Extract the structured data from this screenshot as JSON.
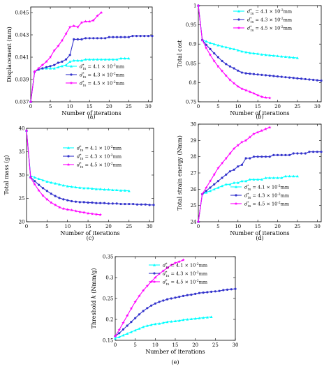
{
  "colors": {
    "series": [
      "#00ffff",
      "#3333cc",
      "#ff00ff"
    ],
    "axis": "#000000"
  },
  "chart_data": [
    {
      "type": "line",
      "caption": "(a)",
      "xlabel": "Number of iterations",
      "ylabel": "Displacement (mm)",
      "xlim": [
        0,
        31
      ],
      "ylim": [
        0.037,
        0.0455
      ],
      "xticks": [
        "0",
        "5",
        "10",
        "15",
        "20",
        "25",
        "30"
      ],
      "yticks": [
        "0.037",
        "0.039",
        "0.041",
        "0.043",
        "0.045"
      ],
      "legend_position": "bottom-right",
      "series": [
        {
          "name": "d*_{tn} = 4.1 × 10^{-2}mm",
          "x": [
            0,
            1,
            2,
            3,
            4,
            5,
            6,
            7,
            8,
            9,
            10,
            11,
            12,
            13,
            14,
            15,
            16,
            17,
            18,
            19,
            20,
            21,
            22,
            23,
            24,
            25
          ],
          "values": [
            0.037,
            0.0397,
            0.0399,
            0.04,
            0.04,
            0.04,
            0.04,
            0.0401,
            0.0402,
            0.0403,
            0.0406,
            0.0407,
            0.0407,
            0.0407,
            0.0408,
            0.0408,
            0.0408,
            0.0408,
            0.0408,
            0.0408,
            0.0408,
            0.0408,
            0.0408,
            0.0409,
            0.0409,
            0.0409
          ]
        },
        {
          "name": "d*_{tn} = 4.3 × 10^{-2}mm",
          "x": [
            0,
            1,
            2,
            3,
            4,
            5,
            6,
            7,
            8,
            9,
            10,
            11,
            12,
            13,
            14,
            15,
            16,
            17,
            18,
            19,
            20,
            21,
            22,
            23,
            24,
            25,
            26,
            27,
            28,
            29,
            30,
            31
          ],
          "values": [
            0.037,
            0.0397,
            0.0399,
            0.04,
            0.0401,
            0.0402,
            0.0403,
            0.0405,
            0.0406,
            0.0408,
            0.0412,
            0.0426,
            0.0426,
            0.0426,
            0.0427,
            0.0427,
            0.0427,
            0.0427,
            0.0427,
            0.0427,
            0.0428,
            0.0428,
            0.0428,
            0.0428,
            0.0428,
            0.0428,
            0.0429,
            0.0429,
            0.0429,
            0.0429,
            0.0429,
            0.0429
          ]
        },
        {
          "name": "d*_{tn} = 4.5 × 10^{-2}mm",
          "x": [
            0,
            1,
            2,
            3,
            4,
            5,
            6,
            7,
            8,
            9,
            10,
            11,
            12,
            13,
            14,
            15,
            16,
            17,
            18
          ],
          "values": [
            0.037,
            0.0397,
            0.04,
            0.0403,
            0.0406,
            0.041,
            0.0416,
            0.042,
            0.0425,
            0.0431,
            0.0437,
            0.0438,
            0.0437,
            0.0441,
            0.0442,
            0.0442,
            0.0443,
            0.0447,
            0.045
          ]
        }
      ]
    },
    {
      "type": "line",
      "caption": "(b)",
      "xlabel": "Number of iterations",
      "ylabel": "Total cost",
      "xlim": [
        0,
        31
      ],
      "ylim": [
        0.75,
        1.0
      ],
      "xticks": [
        "0",
        "5",
        "10",
        "15",
        "20",
        "25",
        "30"
      ],
      "yticks": [
        "0.75",
        "0.8",
        "0.85",
        "0.9",
        "0.95",
        "1"
      ],
      "legend_position": "top-right",
      "series": [
        {
          "name": "d*_{tn} = 4.1 × 10^{-2}mm",
          "x": [
            0,
            1,
            2,
            3,
            4,
            5,
            6,
            7,
            8,
            9,
            10,
            11,
            12,
            13,
            14,
            15,
            16,
            17,
            18,
            19,
            20,
            21,
            22,
            23,
            24,
            25
          ],
          "values": [
            1.0,
            0.911,
            0.907,
            0.903,
            0.9,
            0.897,
            0.894,
            0.892,
            0.889,
            0.887,
            0.884,
            0.881,
            0.879,
            0.877,
            0.876,
            0.875,
            0.873,
            0.872,
            0.871,
            0.87,
            0.869,
            0.868,
            0.867,
            0.866,
            0.865,
            0.864
          ]
        },
        {
          "name": "d*_{tn} = 4.3 × 10^{-2}mm",
          "x": [
            0,
            1,
            2,
            3,
            4,
            5,
            6,
            7,
            8,
            9,
            10,
            11,
            12,
            13,
            14,
            15,
            16,
            17,
            18,
            19,
            20,
            21,
            22,
            23,
            24,
            25,
            26,
            27,
            28,
            29,
            30,
            31
          ],
          "values": [
            1.0,
            0.911,
            0.898,
            0.887,
            0.876,
            0.866,
            0.856,
            0.848,
            0.842,
            0.837,
            0.831,
            0.826,
            0.824,
            0.823,
            0.822,
            0.821,
            0.82,
            0.819,
            0.818,
            0.817,
            0.816,
            0.815,
            0.814,
            0.813,
            0.812,
            0.811,
            0.81,
            0.809,
            0.808,
            0.807,
            0.806,
            0.805
          ]
        },
        {
          "name": "d*_{tn} = 4.5 × 10^{-2}mm",
          "x": [
            0,
            1,
            2,
            3,
            4,
            5,
            6,
            7,
            8,
            9,
            10,
            11,
            12,
            13,
            14,
            15,
            16,
            17,
            18
          ],
          "values": [
            1.0,
            0.91,
            0.89,
            0.872,
            0.856,
            0.842,
            0.83,
            0.818,
            0.807,
            0.798,
            0.79,
            0.784,
            0.78,
            0.776,
            0.772,
            0.767,
            0.763,
            0.761,
            0.76
          ]
        }
      ]
    },
    {
      "type": "line",
      "caption": "(c)",
      "xlabel": "Number of iterations",
      "ylabel": "Total mass (g)",
      "xlim": [
        0,
        31
      ],
      "ylim": [
        20,
        40
      ],
      "xticks": [
        "0",
        "5",
        "10",
        "15",
        "20",
        "25",
        "30"
      ],
      "yticks": [
        "20",
        "25",
        "30",
        "35",
        "40"
      ],
      "legend_position": "top-right",
      "series": [
        {
          "name": "d*_{tn} = 4.1 × 10^{-2}mm",
          "x": [
            0,
            1,
            2,
            3,
            4,
            5,
            6,
            7,
            8,
            9,
            10,
            11,
            12,
            13,
            14,
            15,
            16,
            17,
            18,
            19,
            20,
            21,
            22,
            23,
            24,
            25
          ],
          "values": [
            39.5,
            29.8,
            29.5,
            29.2,
            28.9,
            28.6,
            28.4,
            28.2,
            28.0,
            27.8,
            27.6,
            27.5,
            27.4,
            27.3,
            27.2,
            27.2,
            27.1,
            27.0,
            27.0,
            26.9,
            26.9,
            26.8,
            26.8,
            26.7,
            26.7,
            26.6
          ]
        },
        {
          "name": "d*_{tn} = 4.3 × 10^{-2}mm",
          "x": [
            0,
            1,
            2,
            3,
            4,
            5,
            6,
            7,
            8,
            9,
            10,
            11,
            12,
            13,
            14,
            15,
            16,
            17,
            18,
            19,
            20,
            21,
            22,
            23,
            24,
            25,
            26,
            27,
            28,
            29,
            30,
            31
          ],
          "values": [
            39.5,
            29.5,
            28.7,
            27.9,
            27.2,
            26.6,
            26.0,
            25.5,
            25.1,
            24.8,
            24.6,
            24.4,
            24.3,
            24.2,
            24.2,
            24.1,
            24.1,
            24.0,
            24.0,
            24.0,
            23.9,
            23.9,
            23.9,
            23.8,
            23.8,
            23.8,
            23.8,
            23.7,
            23.7,
            23.7,
            23.6,
            23.6
          ]
        },
        {
          "name": "d*_{tn} = 4.5 × 10^{-2}mm",
          "x": [
            0,
            1,
            2,
            3,
            4,
            5,
            6,
            7,
            8,
            9,
            10,
            11,
            12,
            13,
            14,
            15,
            16,
            17,
            18
          ],
          "values": [
            39.5,
            29.4,
            28.0,
            26.7,
            25.6,
            24.8,
            24.1,
            23.6,
            23.1,
            22.8,
            22.6,
            22.5,
            22.3,
            22.1,
            22.0,
            21.8,
            21.7,
            21.6,
            21.5
          ]
        }
      ]
    },
    {
      "type": "line",
      "caption": "(d)",
      "xlabel": "Number of iterations",
      "ylabel": "Total strain energy (Nmm)",
      "xlim": [
        0,
        31
      ],
      "ylim": [
        24,
        30
      ],
      "xticks": [
        "0",
        "5",
        "10",
        "15",
        "20",
        "25",
        "30"
      ],
      "yticks": [
        "24",
        "25",
        "26",
        "27",
        "28",
        "29",
        "30"
      ],
      "legend_position": "bottom-right",
      "series": [
        {
          "name": "d*_{tn} = 4.1 × 10^{-2}mm",
          "x": [
            0,
            1,
            2,
            3,
            4,
            5,
            6,
            7,
            8,
            9,
            10,
            11,
            12,
            13,
            14,
            15,
            16,
            17,
            18,
            19,
            20,
            21,
            22,
            23,
            24,
            25
          ],
          "values": [
            24.0,
            25.7,
            25.8,
            25.9,
            26.0,
            26.1,
            26.2,
            26.3,
            26.3,
            26.4,
            26.4,
            26.5,
            26.5,
            26.6,
            26.6,
            26.6,
            26.6,
            26.7,
            26.7,
            26.7,
            26.7,
            26.7,
            26.8,
            26.8,
            26.8,
            26.8
          ]
        },
        {
          "name": "d*_{tn} = 4.3 × 10^{-2}mm",
          "x": [
            0,
            1,
            2,
            3,
            4,
            5,
            6,
            7,
            8,
            9,
            10,
            11,
            12,
            13,
            14,
            15,
            16,
            17,
            18,
            19,
            20,
            21,
            22,
            23,
            24,
            25,
            26,
            27,
            28,
            29,
            30,
            31
          ],
          "values": [
            24.0,
            25.7,
            25.9,
            26.1,
            26.3,
            26.5,
            26.7,
            26.9,
            27.1,
            27.2,
            27.4,
            27.5,
            27.9,
            27.9,
            28.0,
            28.0,
            28.0,
            28.0,
            28.0,
            28.1,
            28.1,
            28.1,
            28.1,
            28.1,
            28.2,
            28.2,
            28.2,
            28.2,
            28.3,
            28.3,
            28.3,
            28.3
          ]
        },
        {
          "name": "d*_{tn} = 4.5 × 10^{-2}mm",
          "x": [
            0,
            1,
            2,
            3,
            4,
            5,
            6,
            7,
            8,
            9,
            10,
            11,
            12,
            13,
            14,
            15,
            16,
            17,
            18
          ],
          "values": [
            24.0,
            25.7,
            26.1,
            26.5,
            26.9,
            27.3,
            27.6,
            27.9,
            28.2,
            28.5,
            28.7,
            28.9,
            29.0,
            29.2,
            29.4,
            29.5,
            29.6,
            29.7,
            29.8
          ]
        }
      ]
    },
    {
      "type": "line",
      "caption": "(e)",
      "xlabel": "Number of iterations",
      "ylabel": "Threshold k (Nmm/g)",
      "xlim": [
        0,
        30
      ],
      "ylim": [
        0.15,
        0.35
      ],
      "xticks": [
        "0",
        "5",
        "10",
        "15",
        "20",
        "25",
        "30"
      ],
      "yticks": [
        "0.15",
        "0.2",
        "0.25",
        "0.3",
        "0.35"
      ],
      "legend_position": "right",
      "series": [
        {
          "name": "d*_{tn} = 4.1 × 10^{-2}mm",
          "x": [
            0,
            1,
            2,
            3,
            4,
            5,
            6,
            7,
            8,
            9,
            10,
            11,
            12,
            13,
            14,
            15,
            16,
            17,
            18,
            19,
            20,
            21,
            22,
            23,
            24
          ],
          "values": [
            0.155,
            0.158,
            0.162,
            0.166,
            0.17,
            0.174,
            0.178,
            0.182,
            0.185,
            0.187,
            0.189,
            0.19,
            0.192,
            0.194,
            0.195,
            0.196,
            0.197,
            0.199,
            0.2,
            0.201,
            0.202,
            0.203,
            0.204,
            0.205,
            0.206
          ]
        },
        {
          "name": "d*_{tn} = 4.3 × 10^{-2}mm",
          "x": [
            0,
            1,
            2,
            3,
            4,
            5,
            6,
            7,
            8,
            9,
            10,
            11,
            12,
            13,
            14,
            15,
            16,
            17,
            18,
            19,
            20,
            21,
            22,
            23,
            24,
            25,
            26,
            27,
            28,
            29,
            30
          ],
          "values": [
            0.16,
            0.167,
            0.176,
            0.185,
            0.194,
            0.203,
            0.212,
            0.22,
            0.227,
            0.233,
            0.238,
            0.242,
            0.245,
            0.248,
            0.25,
            0.252,
            0.254,
            0.256,
            0.258,
            0.259,
            0.261,
            0.263,
            0.264,
            0.265,
            0.266,
            0.267,
            0.268,
            0.27,
            0.271,
            0.272,
            0.273
          ]
        },
        {
          "name": "d*_{tn} = 4.5 × 10^{-2}mm",
          "x": [
            0,
            1,
            2,
            3,
            4,
            5,
            6,
            7,
            8,
            9,
            10,
            11,
            12,
            13,
            14,
            15,
            16,
            17
          ],
          "values": [
            0.16,
            0.175,
            0.192,
            0.209,
            0.226,
            0.242,
            0.256,
            0.269,
            0.28,
            0.29,
            0.3,
            0.309,
            0.316,
            0.323,
            0.33,
            0.335,
            0.338,
            0.342
          ]
        }
      ]
    }
  ]
}
